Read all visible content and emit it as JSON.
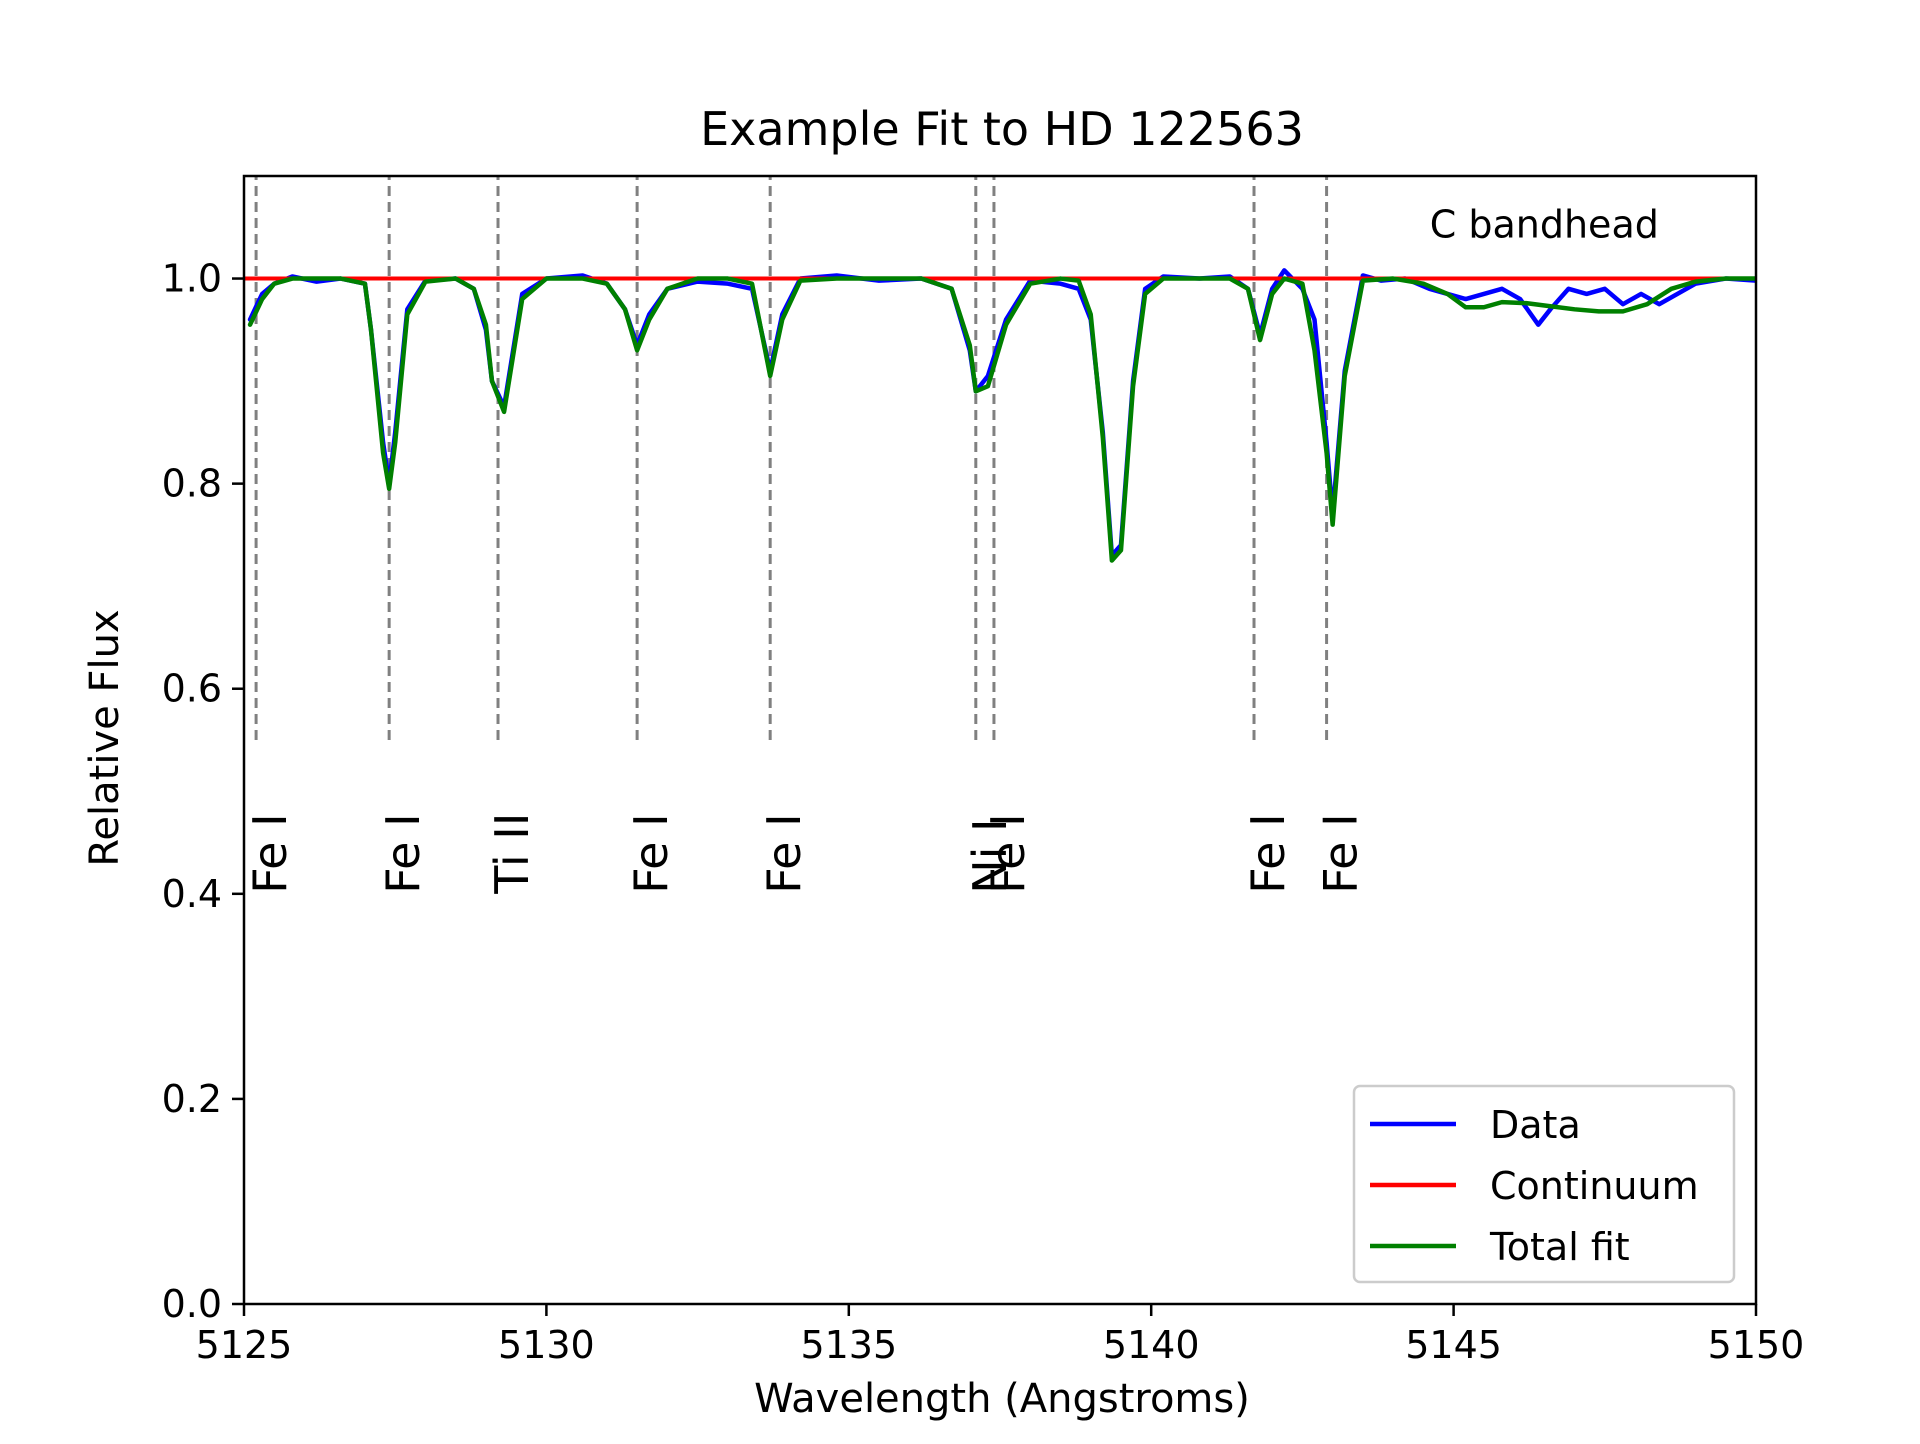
{
  "chart_data": {
    "type": "line",
    "title": "Example Fit to HD 122563",
    "xlabel": "Wavelength (Angstroms)",
    "ylabel": "Relative Flux",
    "xlim": [
      5125,
      5150
    ],
    "ylim": [
      0.0,
      1.1
    ],
    "xticks": [
      5125,
      5130,
      5135,
      5140,
      5145,
      5150
    ],
    "yticks": [
      0.0,
      0.2,
      0.4,
      0.6,
      0.8,
      1.0
    ],
    "xtick_labels": [
      "5125",
      "5130",
      "5135",
      "5140",
      "5145",
      "5150"
    ],
    "ytick_labels": [
      "0.0",
      "0.2",
      "0.4",
      "0.6",
      "0.8",
      "1.0"
    ],
    "grid": false,
    "legend_position": "lower-right",
    "series": [
      {
        "name": "Data",
        "color": "#0000ff",
        "x": [
          5125.1,
          5125.3,
          5125.5,
          5125.8,
          5126.2,
          5126.6,
          5127.0,
          5127.1,
          5127.3,
          5127.4,
          5127.5,
          5127.7,
          5128.0,
          5128.5,
          5128.8,
          5129.0,
          5129.1,
          5129.3,
          5129.6,
          5130.0,
          5130.6,
          5131.0,
          5131.3,
          5131.5,
          5131.7,
          5132.0,
          5132.5,
          5133.0,
          5133.4,
          5133.7,
          5133.9,
          5134.2,
          5134.8,
          5135.5,
          5136.2,
          5136.7,
          5137.0,
          5137.1,
          5137.3,
          5137.6,
          5138.0,
          5138.5,
          5138.8,
          5139.0,
          5139.2,
          5139.35,
          5139.5,
          5139.7,
          5139.9,
          5140.2,
          5140.8,
          5141.3,
          5141.6,
          5141.8,
          5142.0,
          5142.2,
          5142.5,
          5142.7,
          5142.9,
          5143.0,
          5143.2,
          5143.5,
          5143.8,
          5144.2,
          5144.6,
          5144.9,
          5145.2,
          5145.5,
          5145.8,
          5146.1,
          5146.4,
          5146.6,
          5146.9,
          5147.2,
          5147.5,
          5147.8,
          5148.1,
          5148.4,
          5148.7,
          5149.0,
          5149.5,
          5150.0
        ],
        "y": [
          0.96,
          0.985,
          0.995,
          1.002,
          0.997,
          1.0,
          0.995,
          0.95,
          0.84,
          0.8,
          0.85,
          0.97,
          0.998,
          1.0,
          0.99,
          0.95,
          0.9,
          0.875,
          0.985,
          1.0,
          1.003,
          0.995,
          0.97,
          0.935,
          0.965,
          0.99,
          0.997,
          0.995,
          0.99,
          0.91,
          0.965,
          1.0,
          1.003,
          0.998,
          1.0,
          0.99,
          0.93,
          0.89,
          0.905,
          0.96,
          0.998,
          0.995,
          0.99,
          0.96,
          0.85,
          0.73,
          0.74,
          0.9,
          0.99,
          1.002,
          1.0,
          1.002,
          0.99,
          0.945,
          0.99,
          1.008,
          0.99,
          0.96,
          0.84,
          0.77,
          0.91,
          1.003,
          0.998,
          1.0,
          0.99,
          0.985,
          0.98,
          0.985,
          0.99,
          0.98,
          0.955,
          0.97,
          0.99,
          0.985,
          0.99,
          0.975,
          0.985,
          0.975,
          0.985,
          0.995,
          1.0,
          0.998
        ]
      },
      {
        "name": "Continuum",
        "color": "#ff0000",
        "x": [
          5125,
          5150
        ],
        "y": [
          1.0,
          1.0
        ]
      },
      {
        "name": "Total fit",
        "color": "#008000",
        "x": [
          5125.1,
          5125.3,
          5125.5,
          5125.8,
          5126.2,
          5126.6,
          5127.0,
          5127.1,
          5127.3,
          5127.4,
          5127.5,
          5127.7,
          5128.0,
          5128.5,
          5128.8,
          5129.0,
          5129.1,
          5129.3,
          5129.6,
          5130.0,
          5130.6,
          5131.0,
          5131.3,
          5131.5,
          5131.7,
          5132.0,
          5132.5,
          5133.0,
          5133.4,
          5133.7,
          5133.9,
          5134.2,
          5134.8,
          5135.5,
          5136.2,
          5136.7,
          5137.0,
          5137.1,
          5137.3,
          5137.6,
          5138.0,
          5138.5,
          5138.8,
          5139.0,
          5139.2,
          5139.35,
          5139.5,
          5139.7,
          5139.9,
          5140.2,
          5140.8,
          5141.3,
          5141.6,
          5141.8,
          5142.0,
          5142.2,
          5142.5,
          5142.7,
          5142.9,
          5143.0,
          5143.2,
          5143.5,
          5144.0,
          5144.5,
          5144.9,
          5145.2,
          5145.5,
          5145.8,
          5146.2,
          5146.6,
          5147.0,
          5147.4,
          5147.8,
          5148.2,
          5148.6,
          5149.0,
          5149.5,
          5150.0
        ],
        "y": [
          0.955,
          0.98,
          0.995,
          1.0,
          1.0,
          1.0,
          0.995,
          0.95,
          0.83,
          0.795,
          0.84,
          0.965,
          0.997,
          1.0,
          0.99,
          0.955,
          0.9,
          0.87,
          0.98,
          1.0,
          1.0,
          0.995,
          0.97,
          0.93,
          0.96,
          0.99,
          1.0,
          1.0,
          0.995,
          0.905,
          0.96,
          0.998,
          1.0,
          1.0,
          1.0,
          0.99,
          0.935,
          0.89,
          0.895,
          0.955,
          0.995,
          1.0,
          0.998,
          0.965,
          0.845,
          0.725,
          0.735,
          0.895,
          0.985,
          1.0,
          1.0,
          1.0,
          0.99,
          0.94,
          0.985,
          1.0,
          0.995,
          0.93,
          0.83,
          0.76,
          0.905,
          0.998,
          1.0,
          0.995,
          0.985,
          0.972,
          0.972,
          0.977,
          0.976,
          0.973,
          0.97,
          0.968,
          0.968,
          0.975,
          0.99,
          0.997,
          1.0,
          1.0
        ]
      }
    ],
    "reference_lines": {
      "x": [
        5125.2,
        5127.4,
        5129.2,
        5131.5,
        5133.7,
        5137.1,
        5137.4,
        5141.7,
        5142.9
      ],
      "ymin": 0.55,
      "ymax": 1.1,
      "color": "#808080",
      "style": "dashed"
    },
    "line_labels": [
      {
        "text": "Fe I",
        "x": 5125.2
      },
      {
        "text": "Fe I",
        "x": 5127.4
      },
      {
        "text": "Ti II",
        "x": 5129.2
      },
      {
        "text": "Fe I",
        "x": 5131.5
      },
      {
        "text": "Fe I",
        "x": 5133.7
      },
      {
        "text": "Ni I",
        "x": 5137.1
      },
      {
        "text": "Fe I",
        "x": 5137.4
      },
      {
        "text": "Fe I",
        "x": 5141.7
      },
      {
        "text": "Fe I",
        "x": 5142.9
      }
    ],
    "line_label_y": 0.4,
    "annotations": [
      {
        "text": "C bandhead",
        "x": 5146.5,
        "y": 1.04
      }
    ]
  }
}
